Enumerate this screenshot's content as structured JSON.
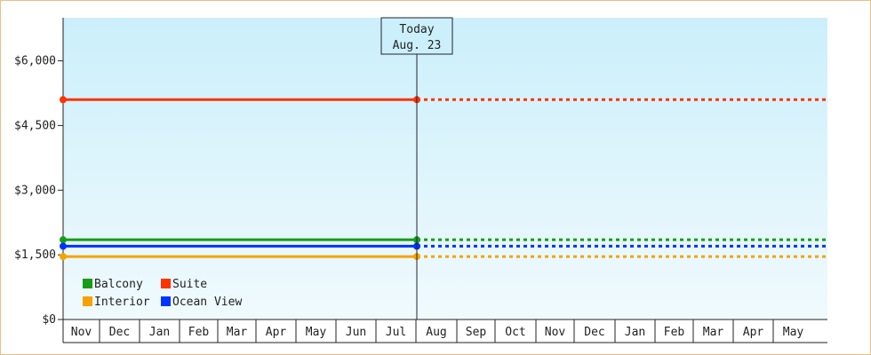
{
  "chart_data": {
    "type": "line",
    "ylim": [
      0,
      7000
    ],
    "y_ticks": [
      {
        "value": 0,
        "label": "$0"
      },
      {
        "value": 1500,
        "label": "$1,500"
      },
      {
        "value": 3000,
        "label": "$3,000"
      },
      {
        "value": 4500,
        "label": "$4,500"
      },
      {
        "value": 6000,
        "label": "$6,000"
      }
    ],
    "categories": [
      "Nov",
      "Dec",
      "Jan",
      "Feb",
      "Mar",
      "Apr",
      "May",
      "Jun",
      "Jul",
      "Aug",
      "Sep",
      "Oct",
      "Nov",
      "Dec",
      "Jan",
      "Feb",
      "Mar",
      "Apr",
      "May"
    ],
    "today": {
      "line1": "Today",
      "line2": "Aug. 23",
      "index": 9
    },
    "series": [
      {
        "name": "Suite",
        "color": "#ff3300",
        "value": 5100
      },
      {
        "name": "Balcony",
        "color": "#169d16",
        "value": 1850
      },
      {
        "name": "Ocean View",
        "color": "#0033ff",
        "value": 1700
      },
      {
        "name": "Interior",
        "color": "#f5a300",
        "value": 1460
      }
    ],
    "legend": {
      "placement": "bottom-left",
      "rows": [
        [
          {
            "name": "Balcony",
            "color": "#169d16"
          },
          {
            "name": "Suite",
            "color": "#ff3300"
          }
        ],
        [
          {
            "name": "Interior",
            "color": "#f5a300"
          },
          {
            "name": "Ocean View",
            "color": "#0033ff"
          }
        ]
      ]
    },
    "grid": false
  }
}
